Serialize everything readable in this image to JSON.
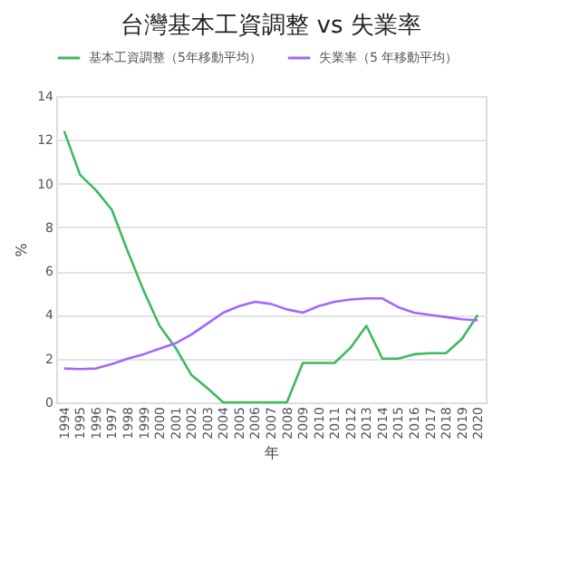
{
  "chart_data": {
    "type": "line",
    "title": "台灣基本工資調整  vs 失業率",
    "xlabel": "年",
    "ylabel": "%",
    "categories": [
      "1994",
      "1995",
      "1996",
      "1997",
      "1998",
      "1999",
      "2000",
      "2001",
      "2002",
      "2003",
      "2004",
      "2005",
      "2006",
      "2007",
      "2008",
      "2009",
      "2010",
      "2011",
      "2012",
      "2013",
      "2014",
      "2015",
      "2016",
      "2017",
      "2018",
      "2019",
      "2020"
    ],
    "series": [
      {
        "name": "基本工資調整（5年移動平均）",
        "color": "#3dba5e",
        "values": [
          12.4,
          10.4,
          9.7,
          8.8,
          6.9,
          5.1,
          3.5,
          2.5,
          1.25,
          0.65,
          0,
          0,
          0,
          0,
          0,
          1.8,
          1.8,
          1.8,
          2.5,
          3.5,
          2.0,
          2.0,
          2.2,
          2.25,
          2.25,
          2.9,
          4.0
        ]
      },
      {
        "name": "失業率（5 年移動平均）",
        "color": "#a366ff",
        "values": [
          1.55,
          1.52,
          1.55,
          1.75,
          2.0,
          2.2,
          2.45,
          2.7,
          3.1,
          3.6,
          4.1,
          4.4,
          4.6,
          4.5,
          4.25,
          4.1,
          4.4,
          4.6,
          4.7,
          4.75,
          4.75,
          4.35,
          4.1,
          4.0,
          3.9,
          3.8,
          3.75
        ]
      }
    ],
    "ylim": [
      0,
      14
    ],
    "yticks": [
      0,
      2,
      4,
      6,
      8,
      10,
      12,
      14
    ],
    "grid": "y",
    "legend": "top",
    "marker": "none",
    "line_style": "solid"
  }
}
